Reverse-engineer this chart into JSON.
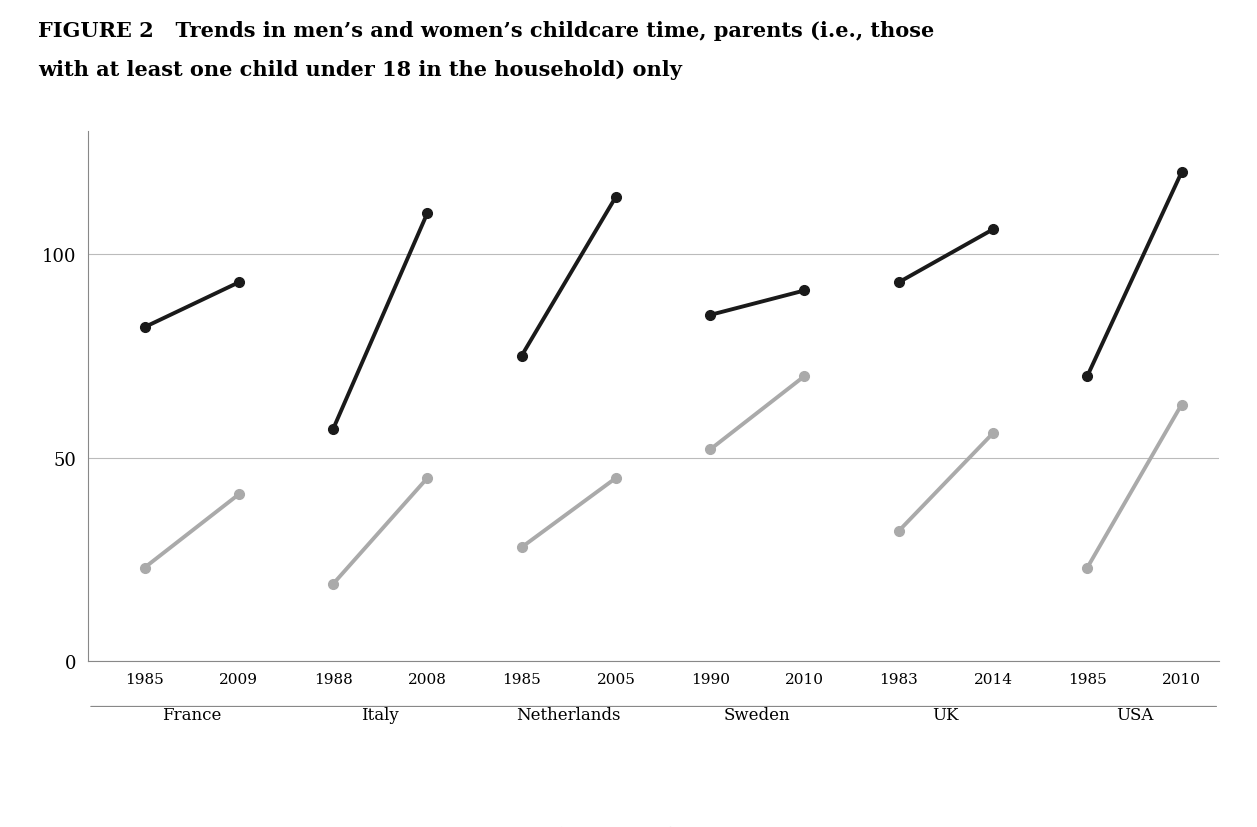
{
  "title_line1": "FIGURE 2   Trends in men’s and women’s childcare time, parents (i.e., those",
  "title_line2": "with at least one child under 18 in the household) only",
  "countries": [
    "France",
    "Italy",
    "Netherlands",
    "Sweden",
    "UK",
    "USA"
  ],
  "year_pairs": [
    [
      "1985",
      "2009"
    ],
    [
      "1988",
      "2008"
    ],
    [
      "1985",
      "2005"
    ],
    [
      "1990",
      "2010"
    ],
    [
      "1983",
      "2014"
    ],
    [
      "1985",
      "2010"
    ]
  ],
  "men_values": [
    [
      23,
      41
    ],
    [
      19,
      45
    ],
    [
      28,
      45
    ],
    [
      52,
      70
    ],
    [
      32,
      56
    ],
    [
      23,
      63
    ]
  ],
  "women_values": [
    [
      82,
      93
    ],
    [
      57,
      110
    ],
    [
      75,
      114
    ],
    [
      85,
      91
    ],
    [
      93,
      106
    ],
    [
      70,
      120
    ]
  ],
  "men_color": "#aaaaaa",
  "women_color": "#1a1a1a",
  "ylim": [
    0,
    130
  ],
  "yticks": [
    0,
    50,
    100
  ],
  "background_color": "#ffffff",
  "grid_color": "#bbbbbb",
  "linewidth": 2.8,
  "markersize": 7,
  "title_fontsize": 15,
  "tick_fontsize": 11,
  "country_fontsize": 12,
  "legend_fontsize": 12
}
